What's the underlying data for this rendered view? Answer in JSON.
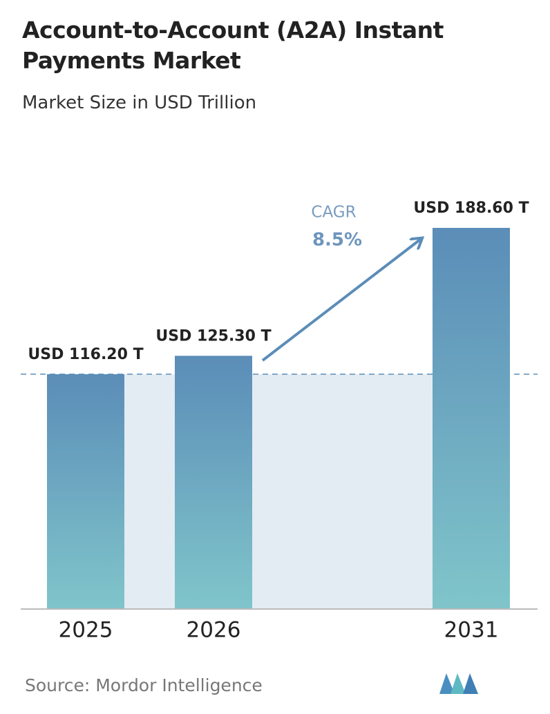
{
  "chart_data": {
    "type": "bar",
    "title": "Account-to-Account (A2A) Instant Payments Market",
    "subtitle": "Market Size in USD Trillion",
    "categories": [
      "2025",
      "2026",
      "2031"
    ],
    "values": [
      116.2,
      125.3,
      188.6
    ],
    "value_labels": [
      "USD 116.20 T",
      "USD 125.30 T",
      "USD 188.60 T"
    ],
    "gradient": [
      "#5b8db8",
      "#80c5ca"
    ],
    "annotation": {
      "title": "CAGR",
      "text": "8.5%"
    },
    "source": "Source: Mordor Intelligence"
  }
}
